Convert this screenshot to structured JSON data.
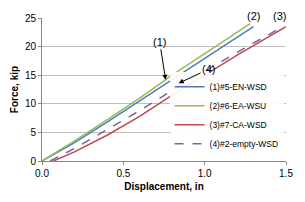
{
  "chart_data": {
    "type": "line",
    "x_label": "Displacement, in",
    "y_label": "Force, kip",
    "xlim": [
      0,
      1.5
    ],
    "xticks": [
      {
        "value": 0,
        "label": "0.0"
      },
      0.5,
      {
        "value": 1,
        "label": "1.0"
      },
      1.5
    ],
    "ylim": [
      0,
      25
    ],
    "yticks": [
      0,
      5,
      10,
      15,
      20,
      25
    ],
    "grid": "y",
    "legend": "lower right",
    "series": [
      {
        "name": "(1)#5-EN-WSD",
        "color": "#4a7ebb",
        "line_style": "solid",
        "x": [
          0,
          0.2,
          0.4,
          0.6,
          0.8,
          1.0,
          1.3
        ],
        "values": [
          0,
          3.2,
          6.8,
          10.5,
          14.3,
          18,
          23.5
        ]
      },
      {
        "name": "(2)#6-EA-WSU",
        "color": "#98b954",
        "line_style": "solid",
        "x": [
          0,
          0.2,
          0.4,
          0.6,
          0.8,
          1.0,
          1.28
        ],
        "values": [
          0,
          3.5,
          7.2,
          11,
          15,
          18.7,
          24
        ]
      },
      {
        "name": "(3)#7-CA-WSD",
        "color": "#be4b48",
        "line_style": "solid",
        "x": [
          0.07,
          0.2,
          0.4,
          0.6,
          0.8,
          1.0,
          1.2,
          1.5
        ],
        "values": [
          0,
          1.6,
          4.5,
          7.8,
          11.5,
          15,
          18.5,
          23.5
        ]
      },
      {
        "name": "(4)#2-empty-WSD",
        "color": "#7d60a0",
        "line_style": "dash",
        "x": [
          0.05,
          0.2,
          0.4,
          0.6,
          0.8,
          1.0,
          1.2,
          1.45
        ],
        "values": [
          0,
          2.2,
          5.5,
          8.8,
          12.3,
          15.7,
          19,
          23
        ]
      }
    ],
    "annotations": [
      {
        "text": "(1)",
        "x": 0.76,
        "y": 14.2,
        "arrow": true
      },
      {
        "text": "(2)",
        "x": 1.3,
        "y": 24,
        "arrow": false
      },
      {
        "text": "(3)",
        "x": 1.46,
        "y": 24,
        "arrow": false
      },
      {
        "text": "(4)",
        "x": 0.84,
        "y": 13.6,
        "arrow": true
      }
    ]
  }
}
